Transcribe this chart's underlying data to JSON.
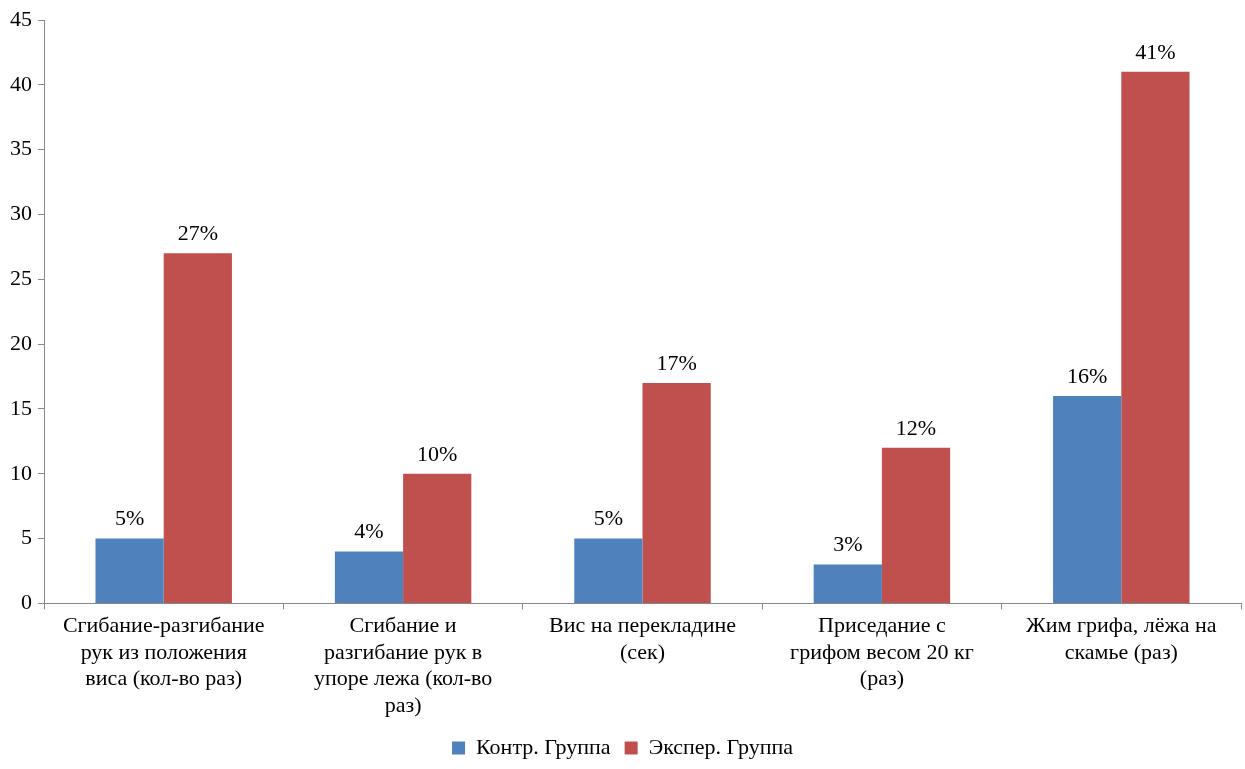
{
  "chart_data": {
    "type": "bar",
    "categories": [
      "Сгибание-разгибание рук из положения виса (кол-во раз)",
      "Сгибание и разгибание рук в упоре лежа (кол-во раз)",
      "Вис на перекладине (сек)",
      "Приседание с грифом весом 20 кг (раз)",
      "Жим грифа, лёжа на скамье (раз)"
    ],
    "series": [
      {
        "name": "Контр. Группа",
        "color": "#4f81bd",
        "values": [
          5,
          4,
          5,
          3,
          16
        ],
        "value_labels": [
          "5%",
          "4%",
          "5%",
          "3%",
          "16%"
        ]
      },
      {
        "name": "Экспер. Группа",
        "color": "#c0504d",
        "values": [
          27,
          10,
          17,
          12,
          41
        ],
        "value_labels": [
          "27%",
          "10%",
          "17%",
          "12%",
          "41%"
        ]
      }
    ],
    "ylim": [
      0,
      45
    ],
    "yticks": [
      0,
      5,
      10,
      15,
      20,
      25,
      30,
      35,
      40,
      45
    ],
    "grid": false,
    "legend": "bottom"
  }
}
